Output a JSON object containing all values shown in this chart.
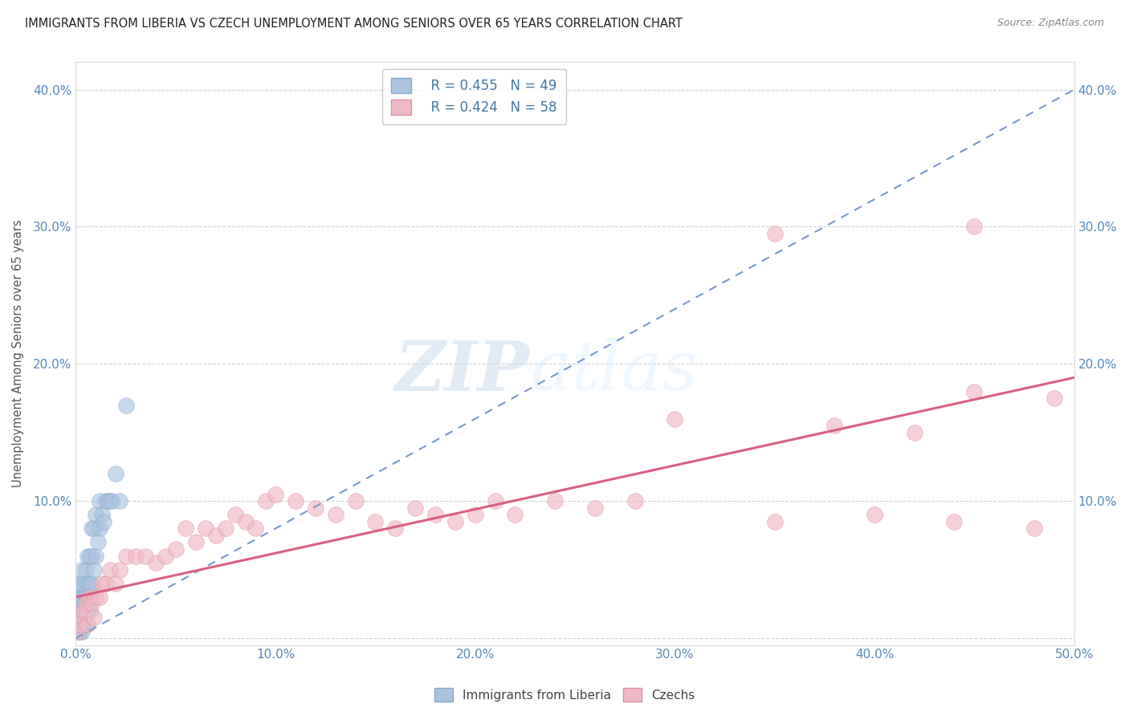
{
  "title": "IMMIGRANTS FROM LIBERIA VS CZECH UNEMPLOYMENT AMONG SENIORS OVER 65 YEARS CORRELATION CHART",
  "source": "Source: ZipAtlas.com",
  "ylabel": "Unemployment Among Seniors over 65 years",
  "xlim": [
    0.0,
    0.5
  ],
  "ylim": [
    -0.005,
    0.42
  ],
  "xtick_labels": [
    "0.0%",
    "10.0%",
    "20.0%",
    "30.0%",
    "40.0%",
    "50.0%"
  ],
  "xtick_values": [
    0.0,
    0.1,
    0.2,
    0.3,
    0.4,
    0.5
  ],
  "ytick_labels": [
    "",
    "10.0%",
    "20.0%",
    "30.0%",
    "40.0%"
  ],
  "ytick_values": [
    0.0,
    0.1,
    0.2,
    0.3,
    0.4
  ],
  "blue_R": 0.455,
  "blue_N": 49,
  "pink_R": 0.424,
  "pink_N": 58,
  "legend_label_blue": "Immigrants from Liberia",
  "legend_label_pink": "Czechs",
  "watermark_zip": "ZIP",
  "watermark_atlas": "atlas",
  "blue_trend_x": [
    0.0,
    0.5
  ],
  "blue_trend_y": [
    0.0,
    0.4
  ],
  "pink_trend_x": [
    0.0,
    0.5
  ],
  "pink_trend_y": [
    0.03,
    0.19
  ],
  "blue_x": [
    0.001,
    0.001,
    0.001,
    0.001,
    0.002,
    0.002,
    0.002,
    0.002,
    0.002,
    0.003,
    0.003,
    0.003,
    0.003,
    0.003,
    0.003,
    0.004,
    0.004,
    0.004,
    0.004,
    0.005,
    0.005,
    0.005,
    0.005,
    0.006,
    0.006,
    0.006,
    0.006,
    0.007,
    0.007,
    0.007,
    0.008,
    0.008,
    0.008,
    0.009,
    0.009,
    0.01,
    0.01,
    0.011,
    0.012,
    0.012,
    0.013,
    0.014,
    0.015,
    0.016,
    0.017,
    0.018,
    0.02,
    0.022,
    0.025
  ],
  "blue_y": [
    0.005,
    0.01,
    0.02,
    0.03,
    0.005,
    0.01,
    0.02,
    0.03,
    0.04,
    0.005,
    0.01,
    0.02,
    0.03,
    0.04,
    0.05,
    0.01,
    0.02,
    0.03,
    0.04,
    0.01,
    0.02,
    0.03,
    0.05,
    0.02,
    0.03,
    0.04,
    0.06,
    0.02,
    0.04,
    0.06,
    0.04,
    0.06,
    0.08,
    0.05,
    0.08,
    0.06,
    0.09,
    0.07,
    0.08,
    0.1,
    0.09,
    0.085,
    0.1,
    0.1,
    0.1,
    0.1,
    0.12,
    0.1,
    0.17
  ],
  "pink_x": [
    0.001,
    0.002,
    0.003,
    0.004,
    0.005,
    0.006,
    0.007,
    0.008,
    0.009,
    0.01,
    0.012,
    0.013,
    0.015,
    0.017,
    0.02,
    0.022,
    0.025,
    0.03,
    0.035,
    0.04,
    0.045,
    0.05,
    0.055,
    0.06,
    0.065,
    0.07,
    0.075,
    0.08,
    0.085,
    0.09,
    0.095,
    0.1,
    0.11,
    0.12,
    0.13,
    0.14,
    0.15,
    0.16,
    0.17,
    0.18,
    0.19,
    0.2,
    0.21,
    0.22,
    0.24,
    0.26,
    0.28,
    0.3,
    0.35,
    0.38,
    0.4,
    0.42,
    0.44,
    0.45,
    0.48,
    0.49,
    0.35,
    0.45
  ],
  "pink_y": [
    0.005,
    0.01,
    0.015,
    0.02,
    0.025,
    0.01,
    0.03,
    0.025,
    0.015,
    0.03,
    0.03,
    0.04,
    0.04,
    0.05,
    0.04,
    0.05,
    0.06,
    0.06,
    0.06,
    0.055,
    0.06,
    0.065,
    0.08,
    0.07,
    0.08,
    0.075,
    0.08,
    0.09,
    0.085,
    0.08,
    0.1,
    0.105,
    0.1,
    0.095,
    0.09,
    0.1,
    0.085,
    0.08,
    0.095,
    0.09,
    0.085,
    0.09,
    0.1,
    0.09,
    0.1,
    0.095,
    0.1,
    0.16,
    0.085,
    0.155,
    0.09,
    0.15,
    0.085,
    0.18,
    0.08,
    0.175,
    0.295,
    0.3
  ],
  "background_color": "#ffffff",
  "grid_color": "#cccccc"
}
